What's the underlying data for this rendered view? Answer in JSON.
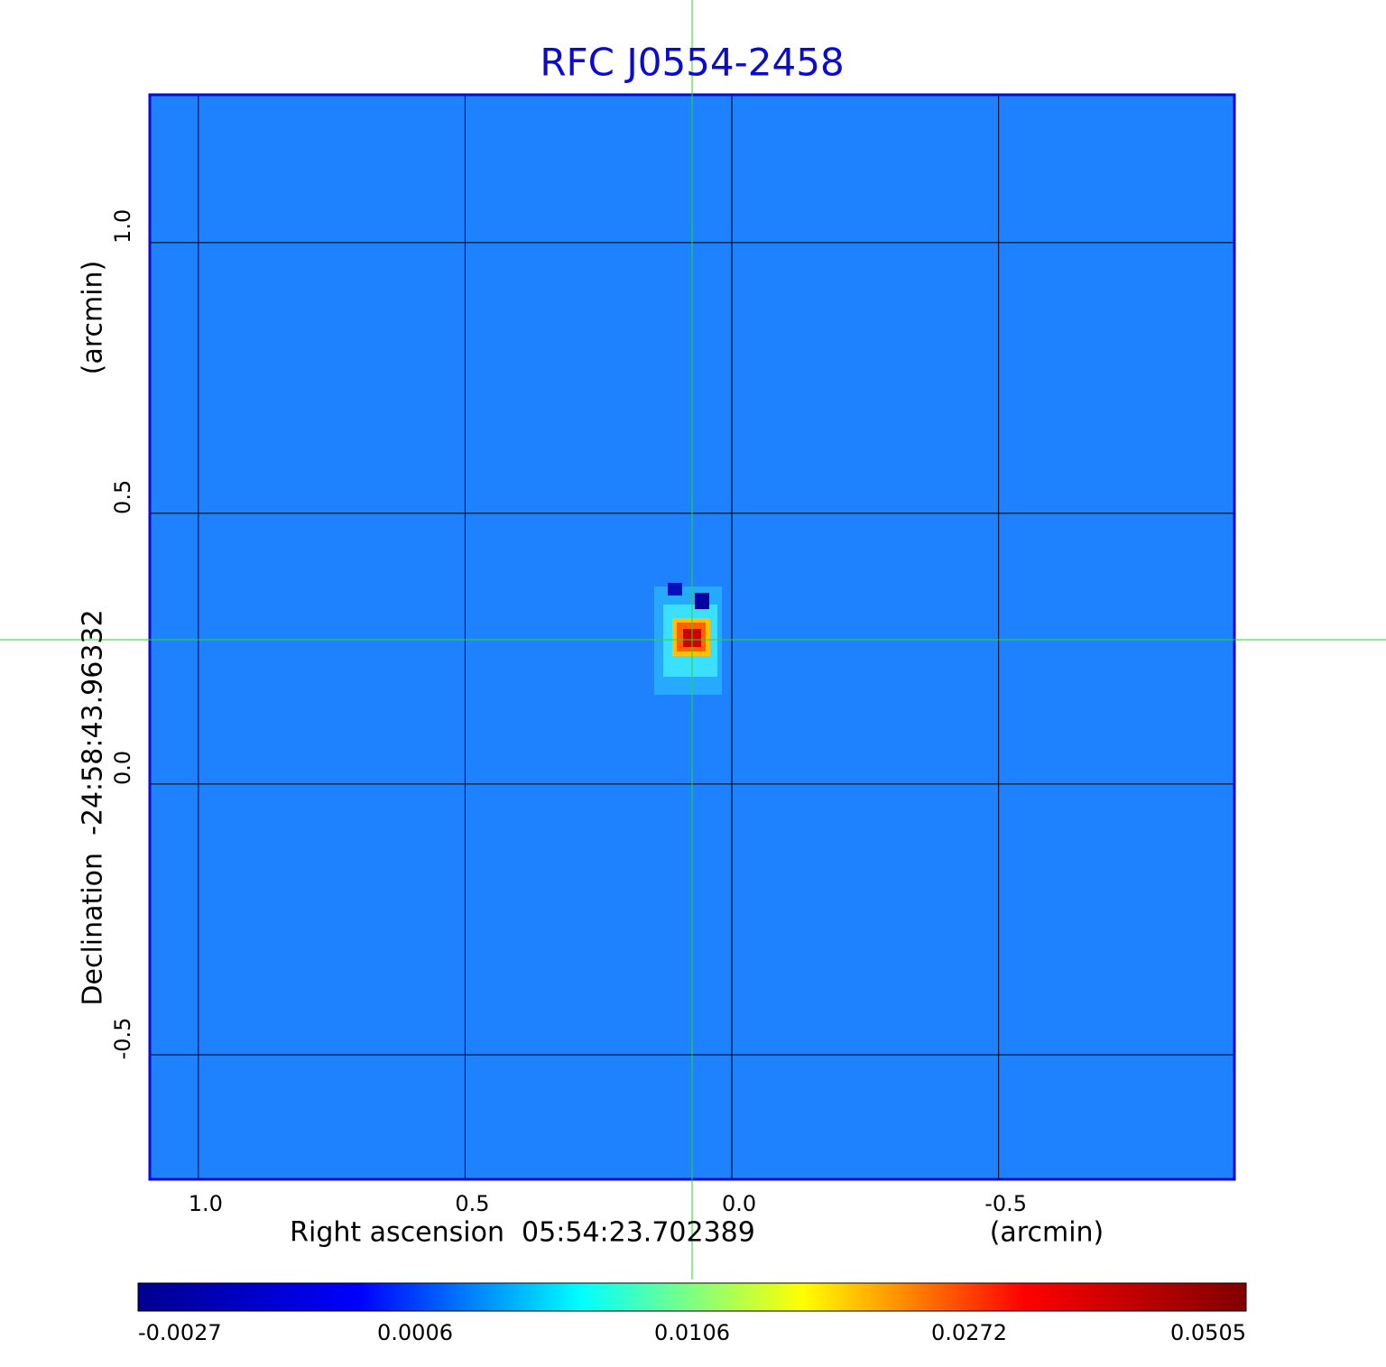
{
  "chart_data": {
    "type": "image",
    "title": "RFC J0554-2458",
    "x_label": "Right ascension  05:54:23.702389",
    "x_unit": "(arcmin)",
    "y_label": "Declination  -24:58:43.96332",
    "y_unit": "(arcmin)",
    "xlim": [
      1.091,
      -0.942
    ],
    "ylim": [
      -0.73,
      1.273
    ],
    "xticks": [
      {
        "value": 1,
        "label": "1.0"
      },
      0.5,
      {
        "value": 0,
        "label": "0.0"
      },
      -0.5
    ],
    "yticks": [
      {
        "value": 1,
        "label": "1.0"
      },
      0.5,
      {
        "value": 0,
        "label": "0.0"
      },
      -0.5
    ],
    "grid": true,
    "colorbar_ticks": [
      -0.0027,
      0.0006,
      0.0106,
      0.0272,
      0.0505
    ],
    "colormap": [
      "#00008f",
      "#0000ff",
      "#00ffff",
      "#ffff00",
      "#ff0000",
      "#800000"
    ]
  }
}
